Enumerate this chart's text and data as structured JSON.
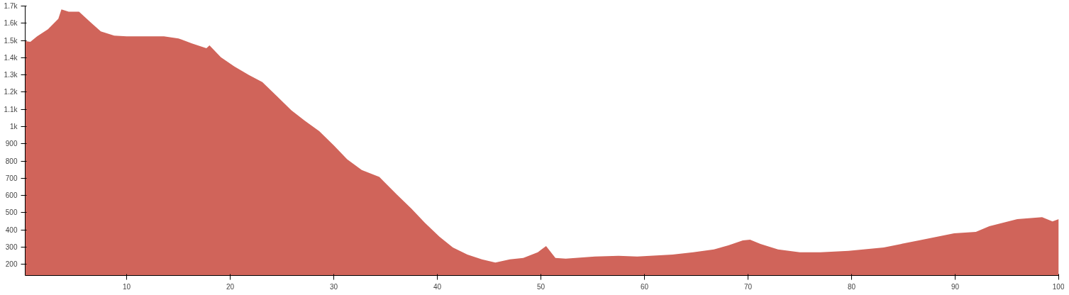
{
  "chart_data": {
    "type": "area",
    "x": [
      0.2,
      0.7,
      1.35,
      2.4,
      3.4,
      3.7,
      4.4,
      5.4,
      6.5,
      7.5,
      8.8,
      10,
      11.6,
      13.6,
      15,
      16.3,
      17.7,
      18,
      19.1,
      20.4,
      21.8,
      23.1,
      24.5,
      25.9,
      27.2,
      28.6,
      30,
      31.3,
      32.7,
      34.4,
      36.1,
      37.5,
      38.8,
      40.2,
      41.5,
      42.9,
      44.3,
      45.6,
      47,
      48.3,
      49.7,
      50.5,
      51.4,
      52.4,
      55.2,
      57.5,
      59.3,
      62.7,
      64.7,
      66.7,
      68.1,
      69.5,
      70.2,
      71.2,
      72.9,
      75,
      77,
      79.7,
      83.1,
      86.5,
      89.9,
      92,
      93.3,
      96,
      98.4,
      99.4,
      100
    ],
    "series": [
      {
        "color": "#d0645a",
        "values": [
          1496,
          1492,
          1524,
          1565,
          1626,
          1680,
          1667,
          1667,
          1606,
          1553,
          1528,
          1524,
          1524,
          1524,
          1512,
          1483,
          1455,
          1471,
          1402,
          1349,
          1299,
          1258,
          1177,
          1095,
          1034,
          973,
          891,
          809,
          748,
          707,
          605,
          523,
          441,
          360,
          298,
          257,
          229,
          210,
          229,
          237,
          270,
          306,
          237,
          233,
          245,
          249,
          245,
          257,
          270,
          286,
          310,
          339,
          343,
          318,
          286,
          270,
          270,
          278,
          298,
          339,
          380,
          388,
          421,
          462,
          474,
          449,
          462
        ]
      }
    ],
    "xlim": [
      0.2,
      100
    ],
    "ylim": [
      135,
      1700
    ],
    "xticks": [
      10,
      20,
      30,
      40,
      50,
      60,
      70,
      80,
      90,
      100
    ],
    "yticks": [
      200,
      300,
      400,
      500,
      600,
      700,
      800,
      900,
      {
        "value": 1000,
        "label": "1k"
      },
      {
        "value": 1100,
        "label": "1.1k"
      },
      {
        "value": 1200,
        "label": "1.2k"
      },
      {
        "value": 1300,
        "label": "1.3k"
      },
      {
        "value": 1400,
        "label": "1.4k"
      },
      {
        "value": 1500,
        "label": "1.5k"
      },
      {
        "value": 1600,
        "label": "1.6k"
      },
      {
        "value": 1700,
        "label": "1.7k"
      }
    ],
    "grid": false
  }
}
